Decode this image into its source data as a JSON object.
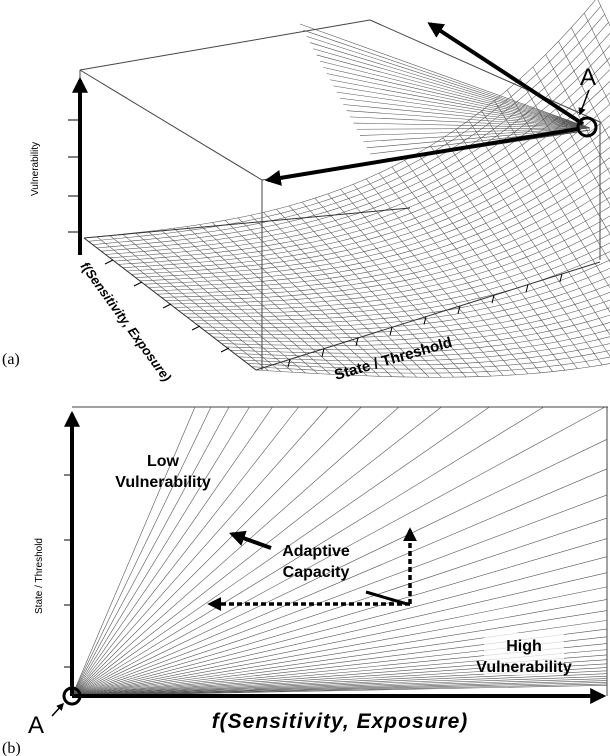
{
  "panel_a": {
    "tag": "(a)",
    "z_axis_label": "Vulnerability",
    "left_axis_label": "f(Sensitivity, Exposure)",
    "right_axis_label": "State / Threshold",
    "point_label": "A"
  },
  "panel_b": {
    "tag": "(b)",
    "y_axis_label": "State / Threshold",
    "x_axis_label": "f(Sensitivity, Exposure)",
    "region_low": [
      "Low",
      "Vulnerability"
    ],
    "region_high": [
      "High",
      "Vulnerability"
    ],
    "adaptive_capacity": [
      "Adaptive",
      "Capacity"
    ],
    "point_label": "A"
  }
}
